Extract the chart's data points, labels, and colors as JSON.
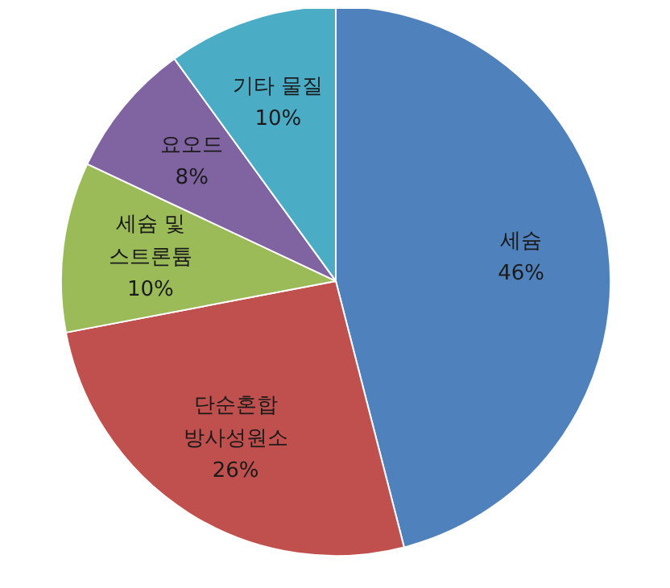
{
  "chart_data": {
    "type": "pie",
    "categories": [
      "세슘",
      "단순혼합\n방사성원소",
      "세슘 및\n스트론튬",
      "요오드",
      "기타 물질"
    ],
    "values": [
      46,
      26,
      10,
      8,
      10
    ],
    "value_labels": [
      "46%",
      "26%",
      "10%",
      "8%",
      "10%"
    ],
    "colors": [
      "#4f81bd",
      "#c0504d",
      "#9bbb59",
      "#8064a2",
      "#4bacc6"
    ]
  }
}
